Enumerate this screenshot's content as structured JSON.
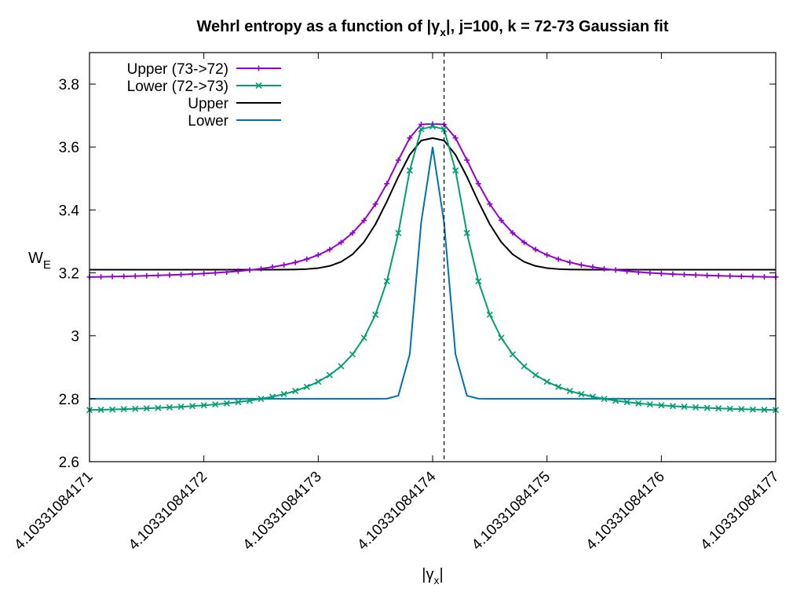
{
  "chart_data": {
    "type": "line",
    "title": {
      "pre": "Wehrl entropy as a function of |",
      "gamma": "γ",
      "sub": "x",
      "post": "|,  j=100, k = 72-73 Gaussian fit"
    },
    "xlabel": {
      "pre": "|",
      "gamma": "γ",
      "sub": "x",
      "post": "|"
    },
    "ylabel": {
      "main": "W",
      "sub": "E"
    },
    "x_ticks": [
      {
        "value": 4.10331084171,
        "label": "4.10331084171"
      },
      {
        "value": 4.10331084172,
        "label": "4.10331084172"
      },
      {
        "value": 4.10331084173,
        "label": "4.10331084173"
      },
      {
        "value": 4.10331084174,
        "label": "4.10331084174"
      },
      {
        "value": 4.10331084175,
        "label": "4.10331084175"
      },
      {
        "value": 4.10331084176,
        "label": "4.10331084176"
      },
      {
        "value": 4.10331084177,
        "label": "4.10331084177"
      }
    ],
    "y_ticks": [
      {
        "value": 2.6,
        "label": "2.6"
      },
      {
        "value": 2.8,
        "label": "2.8"
      },
      {
        "value": 3.0,
        "label": "3"
      },
      {
        "value": 3.2,
        "label": "3.2"
      },
      {
        "value": 3.4,
        "label": "3.4"
      },
      {
        "value": 3.6,
        "label": "3.6"
      },
      {
        "value": 3.8,
        "label": "3.8"
      }
    ],
    "xlim": [
      4.10331084171,
      4.10331084177
    ],
    "ylim": [
      2.6,
      3.9
    ],
    "grid": false,
    "legend_position": "top-left",
    "vertical_line_x": 4.103310841741,
    "x_points": [
      4.10331084171,
      4.103310841711,
      4.103310841712,
      4.103310841713,
      4.103310841714,
      4.103310841715,
      4.103310841716,
      4.103310841717,
      4.103310841718,
      4.103310841719,
      4.10331084172,
      4.103310841721,
      4.103310841722,
      4.103310841723,
      4.103310841724,
      4.103310841725,
      4.103310841726,
      4.103310841727,
      4.103310841728,
      4.103310841729,
      4.10331084173,
      4.103310841731,
      4.103310841732,
      4.103310841733,
      4.103310841734,
      4.103310841735,
      4.103310841736,
      4.103310841737,
      4.103310841738,
      4.103310841739,
      4.10331084174,
      4.103310841741,
      4.103310841742,
      4.103310841743,
      4.103310841744,
      4.103310841745,
      4.103310841746,
      4.103310841747,
      4.103310841748,
      4.103310841749,
      4.10331084175,
      4.103310841751,
      4.103310841752,
      4.103310841753,
      4.103310841754,
      4.103310841755,
      4.103310841756,
      4.103310841757,
      4.103310841758,
      4.103310841759,
      4.10331084176,
      4.103310841761,
      4.103310841762,
      4.103310841763,
      4.103310841764,
      4.103310841765,
      4.103310841766,
      4.103310841767,
      4.103310841768,
      4.103310841769,
      4.10331084177
    ],
    "series": [
      {
        "name": "Upper (73->72)",
        "color": "#9400d3",
        "marker": "plus",
        "y": [
          3.1868,
          3.1874,
          3.1882,
          3.189,
          3.1899,
          3.1908,
          3.1919,
          3.1931,
          3.1945,
          3.1961,
          3.1979,
          3.2,
          3.2025,
          3.2055,
          3.209,
          3.2133,
          3.2186,
          3.2251,
          3.2333,
          3.2436,
          3.2569,
          3.2742,
          3.2969,
          3.327,
          3.3667,
          3.4185,
          3.4835,
          3.5583,
          3.6289,
          3.6717,
          3.6732,
          3.6717,
          3.6289,
          3.5583,
          3.4835,
          3.4185,
          3.3667,
          3.327,
          3.2969,
          3.2742,
          3.2569,
          3.2436,
          3.2333,
          3.2251,
          3.2186,
          3.2133,
          3.209,
          3.2055,
          3.2025,
          3.2,
          3.1979,
          3.1961,
          3.1945,
          3.1931,
          3.1919,
          3.1908,
          3.1899,
          3.189,
          3.1882,
          3.1874,
          3.1868
        ]
      },
      {
        "name": "Lower (72->73)",
        "color": "#009e73",
        "marker": "x",
        "y": [
          2.7642,
          2.765,
          2.7659,
          2.767,
          2.7681,
          2.7694,
          2.7709,
          2.7725,
          2.7744,
          2.7766,
          2.7791,
          2.782,
          2.7853,
          2.7893,
          2.794,
          2.7996,
          2.8064,
          2.8146,
          2.8248,
          2.8377,
          2.8541,
          2.8753,
          2.9034,
          2.9412,
          2.9934,
          3.067,
          3.1733,
          3.3265,
          3.5254,
          3.6565,
          3.6656,
          3.6565,
          3.5254,
          3.3265,
          3.1733,
          3.067,
          2.9934,
          2.9412,
          2.9034,
          2.8753,
          2.8541,
          2.8377,
          2.8248,
          2.8146,
          2.8064,
          2.7996,
          2.794,
          2.7893,
          2.7853,
          2.782,
          2.7791,
          2.7766,
          2.7744,
          2.7725,
          2.7709,
          2.7694,
          2.7681,
          2.767,
          2.7659,
          2.765,
          2.7642
        ]
      },
      {
        "name": "Upper",
        "color": "#000000",
        "marker": "none",
        "y": [
          3.21,
          3.21,
          3.21,
          3.21,
          3.21,
          3.21,
          3.21,
          3.21,
          3.21,
          3.21,
          3.21,
          3.21,
          3.21,
          3.21,
          3.21,
          3.21,
          3.2101,
          3.2103,
          3.2108,
          3.2121,
          3.2152,
          3.2219,
          3.2351,
          3.2589,
          3.2978,
          3.3545,
          3.4268,
          3.5054,
          3.5753,
          3.6205,
          3.6283,
          3.6205,
          3.5753,
          3.5054,
          3.4268,
          3.3545,
          3.2978,
          3.2589,
          3.2351,
          3.2219,
          3.2152,
          3.2121,
          3.2108,
          3.2103,
          3.2101,
          3.21,
          3.21,
          3.21,
          3.21,
          3.21,
          3.21,
          3.21,
          3.21,
          3.21,
          3.21,
          3.21,
          3.21,
          3.21,
          3.21,
          3.21,
          3.21
        ]
      },
      {
        "name": "Lower",
        "color": "#0072b2",
        "marker": "none",
        "y": [
          2.8,
          2.8,
          2.8,
          2.8,
          2.8,
          2.8,
          2.8,
          2.8,
          2.8,
          2.8,
          2.8,
          2.8,
          2.8,
          2.8,
          2.8,
          2.8,
          2.8,
          2.8,
          2.8,
          2.8,
          2.8,
          2.8,
          2.8,
          2.8,
          2.8,
          2.8,
          2.8003,
          2.8097,
          2.9412,
          3.3604,
          3.5985,
          3.3604,
          2.9412,
          2.8097,
          2.8003,
          2.8,
          2.8,
          2.8,
          2.8,
          2.8,
          2.8,
          2.8,
          2.8,
          2.8,
          2.8,
          2.8,
          2.8,
          2.8,
          2.8,
          2.8,
          2.8,
          2.8,
          2.8,
          2.8,
          2.8,
          2.8,
          2.8,
          2.8,
          2.8,
          2.8,
          2.8
        ]
      }
    ]
  }
}
